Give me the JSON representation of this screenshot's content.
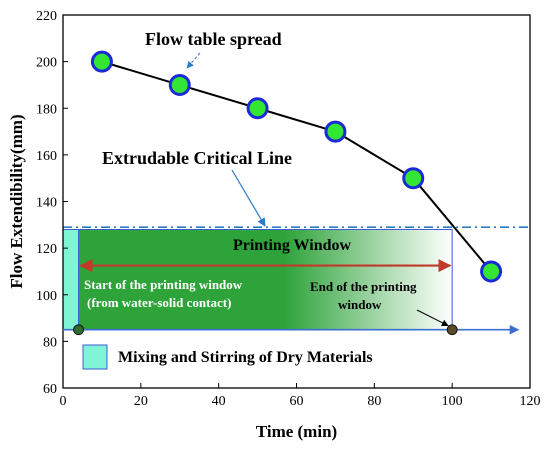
{
  "chart_data": {
    "type": "line",
    "xlabel": "Time (min)",
    "ylabel": "Flow Extendibility(mm)",
    "xlim": [
      0,
      120
    ],
    "ylim": [
      60,
      220
    ],
    "xticks": [
      0,
      20,
      40,
      60,
      80,
      100,
      120
    ],
    "yticks": [
      60,
      80,
      100,
      120,
      140,
      160,
      180,
      200,
      220
    ],
    "grid": false,
    "series": [
      {
        "x": [
          10,
          30,
          50,
          70,
          90,
          110
        ],
        "y": [
          200,
          190,
          180,
          170,
          150,
          110
        ],
        "line_color": "#000000",
        "marker_fill": "#33e633",
        "marker_edge": "#1a2bd6"
      }
    ],
    "critical_line": {
      "y": 129,
      "label": "Extrudable Critical Line",
      "color": "#2a7bc8"
    },
    "mixing_region": {
      "x": [
        0,
        4
      ],
      "y": [
        85,
        128
      ],
      "label": "Mixing and Stirring of Dry Materials",
      "color": "#7ff5d6"
    },
    "printing_window": {
      "x": [
        4,
        100
      ],
      "y": [
        85,
        128
      ],
      "label": "Printing Window",
      "color_start": "#2ea33a",
      "color_end": "#ffffff"
    },
    "window_start": {
      "x": 4,
      "y": 85,
      "label_line1": "Start of the printing window",
      "label_line2": "(from water-solid contact)"
    },
    "window_end": {
      "x": 100,
      "y": 85,
      "label_line1": "End of the printing",
      "label_line2": "window"
    },
    "annotations": {
      "flow_table_spread": "Flow table spread"
    },
    "colors": {
      "time_arrow": "#3a6fd0",
      "window_arrow": "#c0392b",
      "end_marker": "#5a4a2a",
      "start_marker": "#2e6b2e"
    }
  }
}
